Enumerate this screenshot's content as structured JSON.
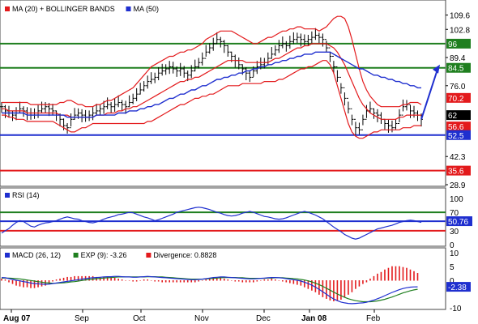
{
  "chart_data": [
    {
      "type": "line",
      "panel": "price",
      "legend": [
        {
          "label": "MA (20) + BOLLINGER BANDS",
          "color": "#e31a1c",
          "icon": "red-square-icon"
        },
        {
          "label": "MA (50)",
          "color": "#1f2fcf",
          "icon": "blue-square-icon"
        }
      ],
      "ylim": [
        28.9,
        116.0
      ],
      "y_ticks": [
        "109.6",
        "102.8",
        "96",
        "89.4",
        "84.5",
        "76.0",
        "70.2",
        "62",
        "56.6",
        "52.5",
        "42.3",
        "35.6",
        "28.9"
      ],
      "x_ticks": [
        "Aug 07",
        "Sep",
        "Oct",
        "Nov",
        "Dec",
        "Jan 08",
        "Feb"
      ],
      "horizontal_lines": [
        {
          "value": 96,
          "label": "96",
          "color": "#1f7f1f"
        },
        {
          "value": 84.5,
          "label": "84.5",
          "color": "#1f7f1f"
        },
        {
          "value": 52.5,
          "label": "52.5",
          "color": "#1f2fcf"
        },
        {
          "value": 35.6,
          "label": "35.6",
          "color": "#e31a1c"
        }
      ],
      "value_badges": [
        {
          "label": "70.2",
          "color": "#e31a1c"
        },
        {
          "label": "62",
          "color": "#000000"
        },
        {
          "label": "56.6",
          "color": "#e31a1c"
        },
        {
          "label": "52.5",
          "color": "#1f2fcf"
        }
      ],
      "forecast_arrow_color": "#1f2fcf",
      "series": [
        {
          "role": "price",
          "color": "#000000",
          "values": [
            66,
            64,
            63,
            62,
            63,
            65,
            64,
            63,
            62,
            63,
            64,
            65,
            66,
            65,
            64,
            62,
            60,
            57,
            56,
            60,
            62,
            63,
            62,
            61,
            62,
            63,
            64,
            65,
            66,
            67,
            66,
            67,
            68,
            67,
            66,
            68,
            70,
            72,
            74,
            76,
            78,
            79,
            80,
            82,
            83,
            84,
            85,
            84,
            83,
            84,
            82,
            81,
            83,
            85,
            87,
            89,
            92,
            94,
            96,
            98,
            97,
            95,
            92,
            90,
            88,
            86,
            84,
            82,
            80,
            83,
            85,
            86,
            87,
            89,
            91,
            93,
            95,
            96,
            95,
            97,
            98,
            99,
            98,
            97,
            98,
            99,
            100,
            99,
            98,
            94,
            90,
            85,
            80,
            75,
            70,
            65,
            60,
            56,
            55,
            60,
            64,
            65,
            63,
            62,
            60,
            58,
            57,
            56,
            58,
            62,
            66,
            67,
            64,
            63,
            62,
            60
          ]
        },
        {
          "role": "ma20",
          "color": "#e31a1c",
          "values": [
            65,
            65,
            64,
            64,
            64,
            64,
            64,
            63,
            63,
            63,
            63,
            63,
            63,
            63,
            63,
            63,
            62,
            62,
            62,
            61,
            61,
            61,
            61,
            61,
            61,
            61,
            62,
            62,
            62,
            63,
            63,
            63,
            64,
            64,
            65,
            65,
            66,
            66,
            67,
            68,
            69,
            70,
            71,
            72,
            73,
            74,
            75,
            76,
            77,
            78,
            78,
            79,
            79,
            80,
            80,
            81,
            82,
            83,
            84,
            85,
            86,
            87,
            88,
            88,
            88,
            88,
            88,
            87,
            87,
            87,
            87,
            87,
            87,
            87,
            88,
            89,
            89,
            90,
            91,
            92,
            93,
            94,
            94,
            95,
            95,
            96,
            96,
            96,
            96,
            96,
            95,
            94,
            92,
            89,
            86,
            82,
            78,
            74,
            70,
            67,
            65,
            63,
            62,
            61,
            60,
            60,
            60,
            60,
            60,
            61,
            61,
            62,
            62,
            62,
            62,
            62
          ]
        },
        {
          "role": "bb_upper",
          "color": "#e31a1c",
          "values": [
            68,
            68,
            68,
            68,
            68,
            68,
            68,
            68,
            67,
            67,
            67,
            67,
            67,
            67,
            67,
            67,
            68,
            68,
            69,
            69,
            68,
            67,
            67,
            66,
            66,
            66,
            67,
            67,
            68,
            69,
            69,
            70,
            71,
            72,
            73,
            74,
            75,
            77,
            79,
            81,
            83,
            85,
            86,
            87,
            88,
            89,
            90,
            90,
            91,
            92,
            92,
            93,
            93,
            94,
            95,
            96,
            98,
            99,
            100,
            101,
            102,
            102,
            102,
            102,
            101,
            100,
            99,
            98,
            97,
            96,
            96,
            97,
            98,
            99,
            99,
            100,
            101,
            102,
            102,
            103,
            103,
            104,
            104,
            103,
            103,
            103,
            103,
            102,
            103,
            104,
            106,
            108,
            109,
            109,
            108,
            104,
            98,
            91,
            84,
            78,
            74,
            71,
            69,
            67,
            66,
            66,
            66,
            66,
            66,
            66,
            67,
            67,
            68,
            68,
            68,
            67
          ]
        },
        {
          "role": "bb_lower",
          "color": "#e31a1c",
          "values": [
            62,
            62,
            61,
            61,
            60,
            60,
            60,
            59,
            59,
            59,
            59,
            59,
            59,
            59,
            59,
            58,
            57,
            56,
            55,
            54,
            54,
            55,
            56,
            56,
            57,
            58,
            58,
            58,
            58,
            58,
            58,
            58,
            58,
            58,
            58,
            58,
            58,
            58,
            58,
            58,
            59,
            59,
            60,
            61,
            62,
            63,
            64,
            65,
            66,
            67,
            67,
            68,
            69,
            70,
            70,
            71,
            71,
            72,
            72,
            73,
            74,
            75,
            76,
            76,
            76,
            76,
            77,
            77,
            77,
            77,
            77,
            77,
            78,
            78,
            78,
            78,
            79,
            79,
            80,
            81,
            82,
            83,
            84,
            84,
            85,
            85,
            86,
            87,
            88,
            88,
            86,
            82,
            76,
            70,
            64,
            58,
            54,
            52,
            51,
            51,
            52,
            53,
            54,
            54,
            55,
            55,
            55,
            55,
            55,
            55,
            56,
            56,
            56,
            57,
            57,
            57
          ]
        },
        {
          "role": "ma50",
          "color": "#1f2fcf",
          "values": [
            63,
            63,
            63,
            63,
            63,
            63,
            63,
            62,
            62,
            62,
            62,
            62,
            62,
            62,
            62,
            62,
            62,
            62,
            61,
            61,
            61,
            61,
            61,
            61,
            61,
            61,
            62,
            62,
            62,
            62,
            62,
            62,
            63,
            63,
            63,
            64,
            64,
            64,
            65,
            65,
            66,
            66,
            67,
            67,
            68,
            69,
            70,
            70,
            71,
            72,
            72,
            73,
            74,
            74,
            75,
            76,
            76,
            77,
            78,
            79,
            79,
            80,
            80,
            81,
            81,
            82,
            82,
            83,
            83,
            84,
            84,
            85,
            85,
            86,
            86,
            87,
            87,
            88,
            88,
            89,
            89,
            90,
            90,
            91,
            91,
            91,
            92,
            92,
            92,
            92,
            92,
            91,
            90,
            89,
            88,
            87,
            86,
            85,
            84,
            84,
            83,
            82,
            81,
            81,
            80,
            80,
            79,
            79,
            78,
            78,
            77,
            77,
            76,
            76,
            75,
            75
          ]
        }
      ]
    },
    {
      "type": "line",
      "panel": "rsi",
      "legend": [
        {
          "label": "RSI (14)",
          "color": "#1f2fcf",
          "icon": "navy-square-icon"
        }
      ],
      "ylim": [
        0,
        100
      ],
      "y_ticks": [
        "100",
        "70",
        "50.76",
        "30",
        "0"
      ],
      "horizontal_lines": [
        {
          "value": 70,
          "label": "70",
          "color": "#1f7f1f"
        },
        {
          "value": 50.76,
          "label": "50.76",
          "color": "#1f2fcf"
        },
        {
          "value": 30,
          "label": "30",
          "color": "#e31a1c"
        }
      ],
      "series": [
        {
          "role": "rsi",
          "color": "#1f2fcf",
          "values": [
            25,
            30,
            35,
            42,
            48,
            52,
            50,
            45,
            40,
            38,
            42,
            45,
            47,
            48,
            50,
            52,
            55,
            58,
            60,
            58,
            56,
            55,
            52,
            50,
            48,
            47,
            49,
            52,
            55,
            58,
            60,
            62,
            65,
            66,
            68,
            70,
            69,
            66,
            63,
            60,
            58,
            55,
            52,
            54,
            57,
            60,
            63,
            66,
            70,
            72,
            74,
            76,
            78,
            80,
            81,
            80,
            78,
            76,
            73,
            70,
            68,
            65,
            63,
            62,
            63,
            65,
            68,
            70,
            72,
            70,
            67,
            64,
            61,
            60,
            58,
            56,
            55,
            56,
            58,
            61,
            64,
            67,
            70,
            72,
            70,
            67,
            64,
            60,
            56,
            50,
            44,
            38,
            33,
            28,
            22,
            18,
            14,
            12,
            14,
            18,
            22,
            26,
            30,
            34,
            36,
            38,
            40,
            42,
            45,
            48,
            50,
            52,
            53,
            52,
            50,
            48
          ]
        }
      ]
    },
    {
      "type": "line",
      "panel": "macd",
      "legend": [
        {
          "label": "MACD (26, 12)",
          "color": "#1f2fcf",
          "icon": "navy-square-icon"
        },
        {
          "label": "EXP (9): -3.26",
          "color": "#1f7f1f",
          "icon": "green-square-icon"
        },
        {
          "label": "Divergence: 0.8828",
          "color": "#e31a1c",
          "icon": "red-square-icon"
        }
      ],
      "ylim": [
        -10,
        10
      ],
      "y_ticks": [
        "10",
        "5",
        "0",
        "-2.38",
        "-10"
      ],
      "value_badges": [
        {
          "label": "-2.38",
          "color": "#1f2fcf"
        }
      ],
      "series": [
        {
          "role": "macd",
          "color": "#1f2fcf",
          "values": [
            1.0,
            0.9,
            0.6,
            0.3,
            0.0,
            -0.2,
            -0.5,
            -0.7,
            -1.0,
            -1.2,
            -1.3,
            -1.4,
            -1.5,
            -1.4,
            -1.2,
            -1.0,
            -0.8,
            -0.6,
            -0.4,
            -0.2,
            0.0,
            0.2,
            0.4,
            0.6,
            0.8,
            0.9,
            1.0,
            1.1,
            1.2,
            1.3,
            1.3,
            1.4,
            1.4,
            1.3,
            1.2,
            1.2,
            1.1,
            1.1,
            1.2,
            1.3,
            1.4,
            1.3,
            1.2,
            1.1,
            1.0,
            0.9,
            0.8,
            0.7,
            0.6,
            0.5,
            0.4,
            0.3,
            0.2,
            0.2,
            0.3,
            0.4,
            0.6,
            0.8,
            1.0,
            1.1,
            1.2,
            1.2,
            1.1,
            1.0,
            0.9,
            0.8,
            0.7,
            0.6,
            0.5,
            0.5,
            0.6,
            0.7,
            0.8,
            0.9,
            1.0,
            1.0,
            0.9,
            0.8,
            0.6,
            0.4,
            0.2,
            0.0,
            -0.3,
            -0.7,
            -1.2,
            -1.8,
            -2.5,
            -3.3,
            -4.2,
            -5.1,
            -6.0,
            -6.8,
            -7.4,
            -7.9,
            -8.2,
            -8.4,
            -8.5,
            -8.4,
            -8.3,
            -8.2,
            -8.0,
            -7.6,
            -7.2,
            -6.7,
            -6.2,
            -5.6,
            -5.0,
            -4.4,
            -3.9,
            -3.4,
            -3.0,
            -2.7,
            -2.5,
            -2.4,
            -2.38
          ]
        },
        {
          "role": "signal",
          "color": "#1f7f1f",
          "values": [
            0.8,
            0.8,
            0.8,
            0.7,
            0.6,
            0.5,
            0.3,
            0.1,
            -0.1,
            -0.3,
            -0.5,
            -0.7,
            -0.9,
            -1.0,
            -1.1,
            -1.1,
            -1.0,
            -0.9,
            -0.8,
            -0.6,
            -0.5,
            -0.3,
            -0.1,
            0.1,
            0.3,
            0.4,
            0.6,
            0.7,
            0.8,
            0.9,
            1.0,
            1.1,
            1.2,
            1.2,
            1.2,
            1.2,
            1.2,
            1.2,
            1.2,
            1.2,
            1.3,
            1.3,
            1.3,
            1.2,
            1.2,
            1.1,
            1.0,
            0.9,
            0.8,
            0.7,
            0.6,
            0.5,
            0.4,
            0.4,
            0.4,
            0.4,
            0.5,
            0.6,
            0.7,
            0.8,
            0.9,
            1.0,
            1.0,
            1.0,
            1.0,
            0.9,
            0.9,
            0.8,
            0.7,
            0.7,
            0.7,
            0.7,
            0.7,
            0.8,
            0.8,
            0.9,
            0.9,
            0.9,
            0.8,
            0.7,
            0.6,
            0.5,
            0.3,
            0.1,
            -0.2,
            -0.6,
            -1.1,
            -1.6,
            -2.2,
            -2.9,
            -3.6,
            -4.3,
            -5.0,
            -5.6,
            -6.2,
            -6.7,
            -7.1,
            -7.4,
            -7.6,
            -7.8,
            -7.8,
            -7.8,
            -7.7,
            -7.5,
            -7.2,
            -6.9,
            -6.5,
            -6.1,
            -5.6,
            -5.1,
            -4.6,
            -4.2,
            -3.8,
            -3.5,
            -3.26
          ]
        }
      ]
    }
  ]
}
